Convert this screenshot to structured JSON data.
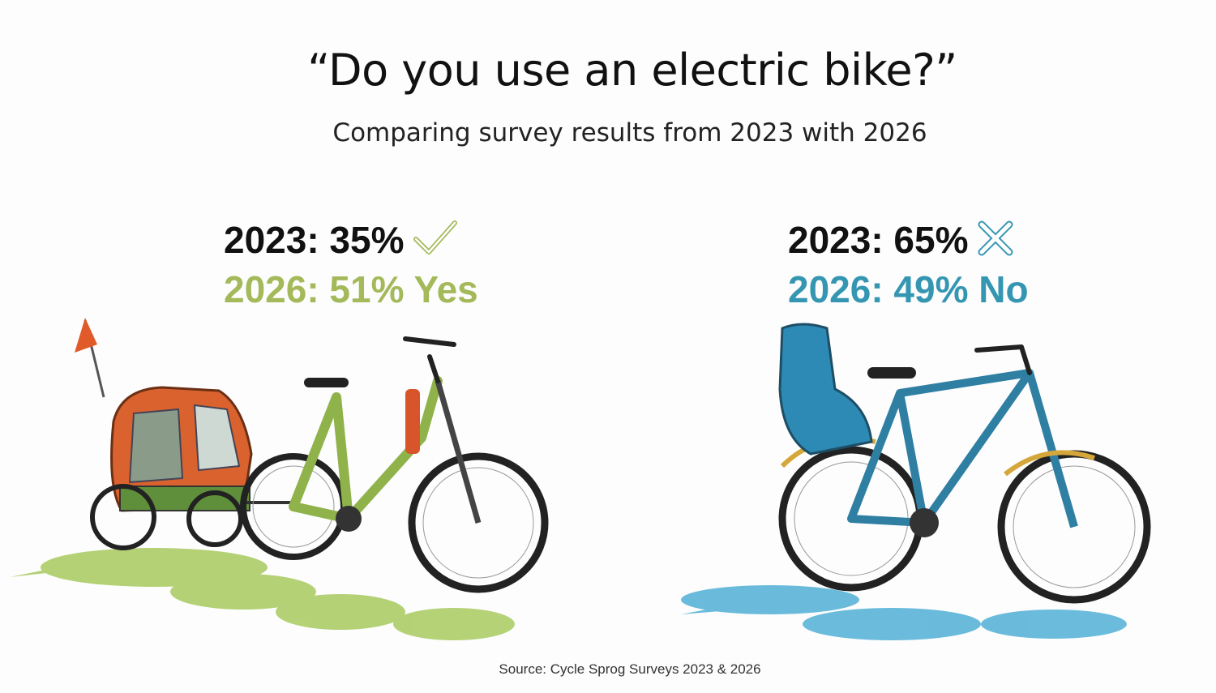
{
  "title": "“Do you use an electric bike?”",
  "subtitle": "Comparing survey results from 2023 with 2026",
  "yes": {
    "line_2023": "2023: 35%",
    "line_2026": "2026: 51% Yes",
    "icon": "check-icon",
    "color": "#a3b95a"
  },
  "no": {
    "line_2023": "2023: 65%",
    "line_2026": "2026: 49% No",
    "icon": "x-icon",
    "color": "#3596b2"
  },
  "source": "Source: Cycle Sprog Surveys 2023 & 2026",
  "illustrations": {
    "left": "green electric bike with orange child trailer",
    "right": "blue bike with child seat"
  }
}
